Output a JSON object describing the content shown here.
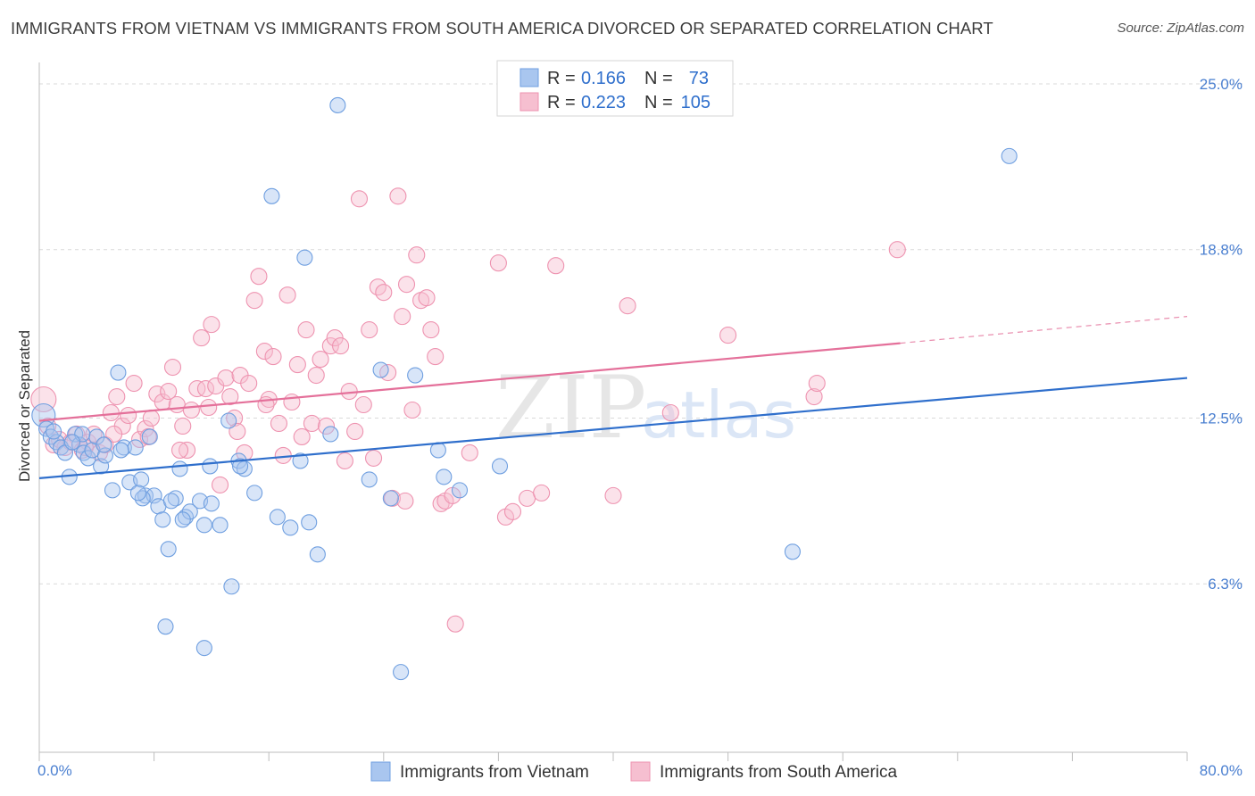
{
  "title": "IMMIGRANTS FROM VIETNAM VS IMMIGRANTS FROM SOUTH AMERICA DIVORCED OR SEPARATED CORRELATION CHART",
  "source": "Source: ZipAtlas.com",
  "watermark": {
    "zip": "ZIP",
    "atlas": "atlas"
  },
  "legend": {
    "r_label": "R =",
    "n_label": "N =",
    "rows": [
      {
        "r": "0.166",
        "n": "73"
      },
      {
        "r": "0.223",
        "n": "105"
      }
    ]
  },
  "colors": {
    "vietnam_fill": "#a9c6ef",
    "vietnam_stroke": "#6f9fe0",
    "vietnam_line": "#2f6fcc",
    "sa_fill": "#f6bfd0",
    "sa_stroke": "#ee93b0",
    "sa_line": "#e4709a",
    "grid": "#d9d9d9",
    "tick_text": "#4a7fd0"
  },
  "chart_data": {
    "type": "scatter",
    "title": "IMMIGRANTS FROM VIETNAM VS IMMIGRANTS FROM SOUTH AMERICA DIVORCED OR SEPARATED CORRELATION CHART",
    "xlabel": "",
    "ylabel": "Divorced or Separated",
    "xlim": [
      0,
      80
    ],
    "ylim": [
      0,
      25.8
    ],
    "x_tick_labels": [
      "0.0%",
      "80.0%"
    ],
    "y_ticks": [
      6.3,
      12.5,
      18.8,
      25.0
    ],
    "y_tick_labels": [
      "6.3%",
      "12.5%",
      "18.8%",
      "25.0%"
    ],
    "grid": true,
    "legend_position": "top-center",
    "series": [
      {
        "name": "Immigrants from Vietnam",
        "R": 0.166,
        "N": 73,
        "trendline": {
          "x": [
            0,
            80
          ],
          "y": [
            10.25,
            14.0
          ]
        },
        "points": [
          [
            0.3,
            12.6
          ],
          [
            0.5,
            12.1
          ],
          [
            0.8,
            11.8
          ],
          [
            1.2,
            11.6
          ],
          [
            1.5,
            11.4
          ],
          [
            1.8,
            11.2
          ],
          [
            2.1,
            10.3
          ],
          [
            2.5,
            11.9
          ],
          [
            2.8,
            11.5
          ],
          [
            3.1,
            11.2
          ],
          [
            3.4,
            11.0
          ],
          [
            3.7,
            11.3
          ],
          [
            4.0,
            11.8
          ],
          [
            4.3,
            10.7
          ],
          [
            4.6,
            11.1
          ],
          [
            5.1,
            9.8
          ],
          [
            5.5,
            14.2
          ],
          [
            5.9,
            11.4
          ],
          [
            6.3,
            10.1
          ],
          [
            6.7,
            11.4
          ],
          [
            7.1,
            10.2
          ],
          [
            7.4,
            9.6
          ],
          [
            7.7,
            11.8
          ],
          [
            8.0,
            9.6
          ],
          [
            8.3,
            9.2
          ],
          [
            8.6,
            8.7
          ],
          [
            9.0,
            7.6
          ],
          [
            9.5,
            9.5
          ],
          [
            9.8,
            10.6
          ],
          [
            10.2,
            8.8
          ],
          [
            10.5,
            9.0
          ],
          [
            11.2,
            9.4
          ],
          [
            11.5,
            8.5
          ],
          [
            11.9,
            10.7
          ],
          [
            12.6,
            8.5
          ],
          [
            13.2,
            12.4
          ],
          [
            13.9,
            10.9
          ],
          [
            14.3,
            10.6
          ],
          [
            15.0,
            9.7
          ],
          [
            16.2,
            20.8
          ],
          [
            16.6,
            8.8
          ],
          [
            17.5,
            8.4
          ],
          [
            18.2,
            10.9
          ],
          [
            18.5,
            18.5
          ],
          [
            18.8,
            8.6
          ],
          [
            19.4,
            7.4
          ],
          [
            20.3,
            11.9
          ],
          [
            20.8,
            24.2
          ],
          [
            23.0,
            10.2
          ],
          [
            23.8,
            14.3
          ],
          [
            24.5,
            9.5
          ],
          [
            25.2,
            3.0
          ],
          [
            26.2,
            14.1
          ],
          [
            27.8,
            11.3
          ],
          [
            28.2,
            10.3
          ],
          [
            29.3,
            9.8
          ],
          [
            32.1,
            10.7
          ],
          [
            52.5,
            7.5
          ],
          [
            67.6,
            22.3
          ],
          [
            8.8,
            4.7
          ],
          [
            11.5,
            3.9
          ],
          [
            13.4,
            6.2
          ],
          [
            7.2,
            9.5
          ],
          [
            10.0,
            8.7
          ],
          [
            4.5,
            11.5
          ],
          [
            3.0,
            11.9
          ],
          [
            5.7,
            11.3
          ],
          [
            14.0,
            10.7
          ],
          [
            9.2,
            9.4
          ],
          [
            2.3,
            11.6
          ],
          [
            6.9,
            9.7
          ],
          [
            12.0,
            9.3
          ],
          [
            1.0,
            12.0
          ]
        ]
      },
      {
        "name": "Immigrants from South America",
        "R": 0.223,
        "N": 105,
        "trendline": {
          "x": [
            0,
            60
          ],
          "y": [
            12.4,
            15.3
          ]
        },
        "trendline_dashed": {
          "x": [
            60,
            80
          ],
          "y": [
            15.3,
            16.3
          ]
        },
        "points": [
          [
            0.3,
            13.2
          ],
          [
            0.6,
            12.2
          ],
          [
            1.0,
            11.5
          ],
          [
            1.4,
            11.7
          ],
          [
            1.8,
            11.4
          ],
          [
            2.2,
            11.6
          ],
          [
            2.6,
            11.9
          ],
          [
            3.0,
            11.3
          ],
          [
            3.4,
            11.6
          ],
          [
            3.8,
            11.9
          ],
          [
            4.2,
            11.2
          ],
          [
            4.6,
            11.5
          ],
          [
            5.0,
            12.7
          ],
          [
            5.4,
            13.3
          ],
          [
            5.8,
            12.2
          ],
          [
            6.2,
            12.6
          ],
          [
            6.6,
            13.8
          ],
          [
            7.0,
            11.7
          ],
          [
            7.4,
            12.1
          ],
          [
            7.8,
            12.5
          ],
          [
            8.2,
            13.4
          ],
          [
            8.6,
            13.1
          ],
          [
            9.0,
            13.5
          ],
          [
            9.3,
            14.4
          ],
          [
            9.6,
            13.0
          ],
          [
            10.0,
            12.2
          ],
          [
            10.3,
            11.3
          ],
          [
            10.6,
            12.8
          ],
          [
            11.0,
            13.6
          ],
          [
            11.3,
            15.5
          ],
          [
            11.6,
            13.6
          ],
          [
            12.0,
            16.0
          ],
          [
            12.3,
            13.7
          ],
          [
            12.6,
            10.0
          ],
          [
            13.0,
            14.0
          ],
          [
            13.3,
            13.3
          ],
          [
            13.6,
            12.5
          ],
          [
            14.0,
            14.1
          ],
          [
            14.3,
            11.2
          ],
          [
            14.6,
            13.8
          ],
          [
            15.0,
            16.9
          ],
          [
            15.3,
            17.8
          ],
          [
            15.7,
            15.0
          ],
          [
            16.0,
            13.2
          ],
          [
            16.3,
            14.8
          ],
          [
            16.7,
            12.3
          ],
          [
            17.0,
            11.1
          ],
          [
            17.3,
            17.1
          ],
          [
            17.6,
            13.1
          ],
          [
            18.0,
            14.5
          ],
          [
            18.3,
            11.8
          ],
          [
            18.6,
            15.8
          ],
          [
            19.0,
            12.3
          ],
          [
            19.3,
            14.1
          ],
          [
            19.6,
            14.7
          ],
          [
            20.0,
            12.2
          ],
          [
            20.3,
            15.2
          ],
          [
            20.6,
            15.5
          ],
          [
            21.0,
            15.2
          ],
          [
            21.3,
            10.9
          ],
          [
            21.6,
            13.5
          ],
          [
            22.0,
            12.0
          ],
          [
            22.3,
            20.7
          ],
          [
            22.6,
            13.0
          ],
          [
            23.0,
            15.8
          ],
          [
            23.3,
            11.0
          ],
          [
            23.6,
            17.4
          ],
          [
            24.0,
            17.2
          ],
          [
            24.3,
            14.2
          ],
          [
            24.6,
            9.5
          ],
          [
            25.0,
            20.8
          ],
          [
            25.3,
            16.3
          ],
          [
            25.6,
            17.5
          ],
          [
            26.0,
            12.8
          ],
          [
            26.3,
            18.6
          ],
          [
            26.6,
            16.9
          ],
          [
            27.0,
            17.0
          ],
          [
            27.3,
            15.8
          ],
          [
            27.6,
            14.8
          ],
          [
            28.0,
            9.3
          ],
          [
            28.3,
            9.4
          ],
          [
            29.0,
            4.8
          ],
          [
            30.0,
            11.2
          ],
          [
            32.0,
            18.3
          ],
          [
            32.5,
            8.8
          ],
          [
            33.0,
            9.0
          ],
          [
            34.0,
            9.5
          ],
          [
            35.0,
            9.7
          ],
          [
            36.0,
            18.2
          ],
          [
            40.0,
            9.6
          ],
          [
            41.0,
            16.7
          ],
          [
            44.0,
            12.7
          ],
          [
            48.0,
            15.6
          ],
          [
            54.0,
            13.3
          ],
          [
            54.2,
            13.8
          ],
          [
            59.8,
            18.8
          ],
          [
            25.5,
            9.4
          ],
          [
            28.8,
            9.6
          ],
          [
            13.8,
            12.0
          ],
          [
            9.8,
            11.3
          ],
          [
            7.6,
            11.8
          ],
          [
            3.2,
            11.4
          ],
          [
            5.2,
            11.9
          ],
          [
            11.8,
            12.9
          ],
          [
            15.8,
            13.0
          ]
        ]
      }
    ]
  },
  "bottom_legend": {
    "items": [
      "Immigrants from Vietnam",
      "Immigrants from South America"
    ]
  }
}
